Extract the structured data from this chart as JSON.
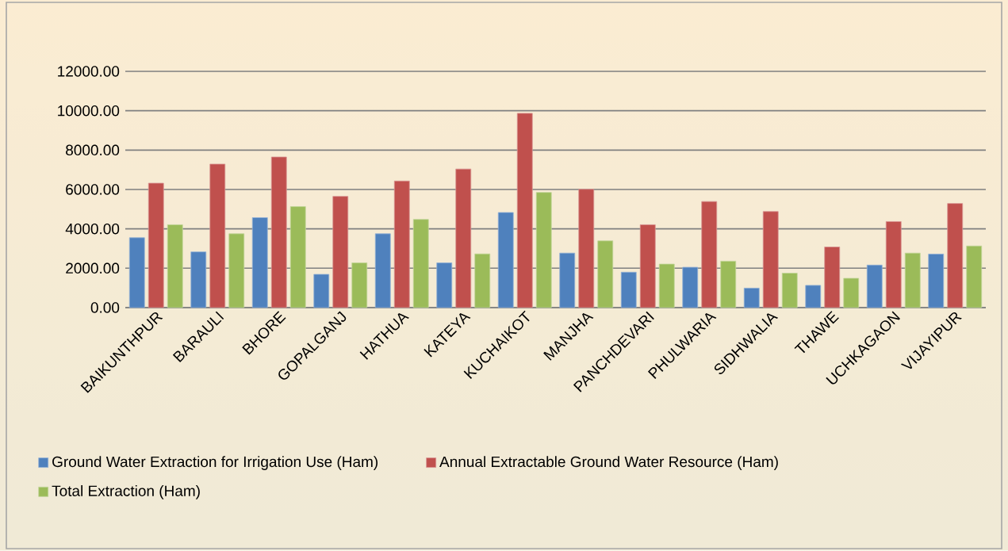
{
  "chart_data": {
    "type": "bar",
    "categories": [
      "BAIKUNTHPUR",
      "BARAULI",
      "BHORE",
      "GOPALGANJ",
      "HATHUA",
      "KATEYA",
      "KUCHAIKOT",
      "MANJHA",
      "PANCHDEVARI",
      "PHULWARIA",
      "SIDHWALIA",
      "THAWE",
      "UCHKAGAON",
      "VIJAYIPUR"
    ],
    "series": [
      {
        "name": "Ground Water Extraction for Irrigation Use  (Ham)",
        "color": "#4f81bd",
        "values": [
          3550,
          2830,
          4570,
          1690,
          3750,
          2270,
          4830,
          2770,
          1800,
          2050,
          990,
          1130,
          2160,
          2720
        ]
      },
      {
        "name": "Annual Extractable Ground Water Resource  (Ham)",
        "color": "#c0504d",
        "values": [
          6320,
          7290,
          7650,
          5650,
          6430,
          7040,
          9870,
          6010,
          4210,
          5390,
          4880,
          3080,
          4370,
          5290
        ]
      },
      {
        "name": "Total Extraction  (Ham)",
        "color": "#9bbb59",
        "values": [
          4210,
          3750,
          5130,
          2270,
          4480,
          2730,
          5850,
          3390,
          2210,
          2360,
          1750,
          1490,
          2770,
          3130
        ]
      }
    ],
    "ylim": [
      0,
      12000
    ],
    "yticks": [
      {
        "value": 0,
        "label": "0.00"
      },
      {
        "value": 2000,
        "label": "2000.00"
      },
      {
        "value": 4000,
        "label": "4000.00"
      },
      {
        "value": 6000,
        "label": "6000.00"
      },
      {
        "value": 8000,
        "label": "8000.00"
      },
      {
        "value": 10000,
        "label": "10000.00"
      },
      {
        "value": 12000,
        "label": "12000.00"
      }
    ],
    "grid": "y",
    "legend": "bottom"
  }
}
